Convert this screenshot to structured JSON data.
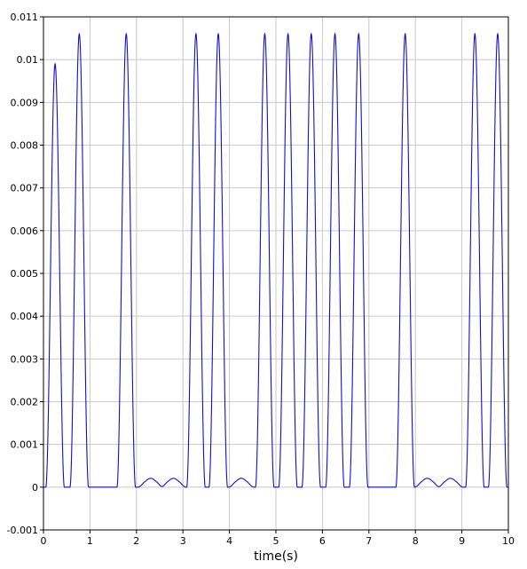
{
  "chart_data": {
    "type": "line",
    "title": "",
    "xlabel": "time(s)",
    "ylabel": "",
    "xlim": [
      0,
      10
    ],
    "ylim": [
      -0.001,
      0.011
    ],
    "grid": true,
    "x_ticks": [
      "0",
      "1",
      "2",
      "3",
      "4",
      "5",
      "6",
      "7",
      "8",
      "9",
      "10"
    ],
    "y_ticks": [
      "-0.001",
      "0",
      "0.001",
      "0.002",
      "0.003",
      "0.004",
      "0.005",
      "0.006",
      "0.007",
      "0.008",
      "0.009",
      "0.01",
      "0.011"
    ],
    "line_color": "#1010c8",
    "grid_color": "#c8c8c8",
    "pulse_width_s": 0.2,
    "peaks": [
      {
        "t": 0.25,
        "y": 0.0099
      },
      {
        "t": 0.77,
        "y": 0.0106
      },
      {
        "t": 1.78,
        "y": 0.0106
      },
      {
        "t": 2.23,
        "y": 0.00015
      },
      {
        "t": 2.38,
        "y": 0.00015
      },
      {
        "t": 2.72,
        "y": 0.00015
      },
      {
        "t": 2.87,
        "y": 0.00015
      },
      {
        "t": 3.28,
        "y": 0.0106
      },
      {
        "t": 3.76,
        "y": 0.0106
      },
      {
        "t": 4.18,
        "y": 0.00015
      },
      {
        "t": 4.33,
        "y": 0.00015
      },
      {
        "t": 4.76,
        "y": 0.0106
      },
      {
        "t": 5.26,
        "y": 0.0106
      },
      {
        "t": 5.76,
        "y": 0.0106
      },
      {
        "t": 6.27,
        "y": 0.0106
      },
      {
        "t": 6.78,
        "y": 0.0106
      },
      {
        "t": 7.78,
        "y": 0.0106
      },
      {
        "t": 8.18,
        "y": 0.00015
      },
      {
        "t": 8.33,
        "y": 0.00015
      },
      {
        "t": 8.68,
        "y": 0.00015
      },
      {
        "t": 8.83,
        "y": 0.00015
      },
      {
        "t": 9.28,
        "y": 0.0106
      },
      {
        "t": 9.77,
        "y": 0.0106
      }
    ]
  }
}
